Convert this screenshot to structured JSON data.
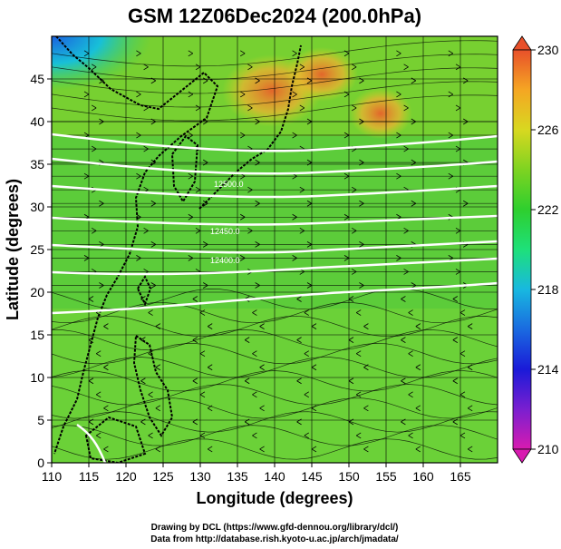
{
  "chart_data": {
    "type": "heatmap",
    "title": "GSM 12Z06Dec2024 (200.0hPa)",
    "xlabel": "Longitude (degrees)",
    "ylabel": "Latitude  (degrees)",
    "xlim": [
      110,
      170
    ],
    "ylim": [
      0,
      50
    ],
    "x_ticks": [
      "110",
      "115",
      "120",
      "125",
      "130",
      "135",
      "140",
      "145",
      "150",
      "155",
      "160",
      "165"
    ],
    "y_ticks": [
      "0",
      "5",
      "10",
      "15",
      "20",
      "25",
      "30",
      "35",
      "40",
      "45"
    ],
    "grid": true,
    "colorbar": {
      "min": 210,
      "max": 230,
      "ticks": [
        "210",
        "214",
        "218",
        "222",
        "226",
        "230"
      ],
      "colors": [
        "#d81bb0",
        "#7a1fd0",
        "#1a1ad8",
        "#1a8ae0",
        "#18d0c8",
        "#1ee07a",
        "#2ecf2e",
        "#7ed321",
        "#d8d820",
        "#f5a623",
        "#e8502a"
      ]
    },
    "overlay": "wind streamlines with white height contours",
    "contour_labels": [
      "12400.0",
      "12450.0",
      "12500.0"
    ],
    "features": [
      {
        "name": "warm patch",
        "lon": 140,
        "lat": 46,
        "value": 228
      },
      {
        "name": "warm patch",
        "lon": 155,
        "lat": 42,
        "value": 227
      },
      {
        "name": "cool corner",
        "lon": 113,
        "lat": 48,
        "value": 218
      }
    ]
  },
  "credits": {
    "line1": "Drawing by DCL (https://www.gfd-dennou.org/library/dcl/)",
    "line2": "Data from http://database.rish.kyoto-u.ac.jp/arch/jmadata/"
  }
}
